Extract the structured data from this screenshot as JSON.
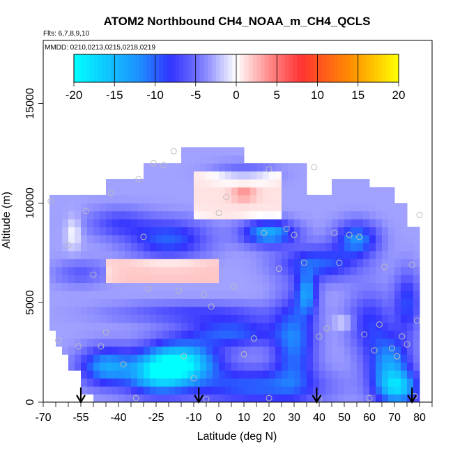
{
  "chart_data": {
    "type": "heatmap",
    "title": "ATOM2 Northbound CH4_NOAA_m_CH4_QCLS",
    "flights_label": "Flts: 6,7,8,9,10",
    "dates_label": "MMDD: 0210,0213,0215,0218,0219",
    "xlabel": "Latitude (deg N)",
    "ylabel": "Altitude (m)",
    "xlim": [
      -70,
      85
    ],
    "ylim": [
      0,
      17500
    ],
    "x_ticks": [
      "-70",
      "-55",
      "-40",
      "-25",
      "-10",
      "0",
      "10",
      "20",
      "30",
      "40",
      "50",
      "60",
      "70",
      "80"
    ],
    "x_tick_values": [
      -70,
      -55,
      -40,
      -25,
      -10,
      0,
      10,
      20,
      30,
      40,
      50,
      60,
      70,
      80
    ],
    "y_ticks": [
      "0",
      "5000",
      "10000",
      "15000"
    ],
    "y_tick_values": [
      0,
      5000,
      10000,
      15000
    ],
    "colorbar": {
      "range": [
        -20,
        20
      ],
      "ticks": [
        "-20",
        "-15",
        "-10",
        "-5",
        "0",
        "5",
        "10",
        "15",
        "20"
      ],
      "tick_values": [
        -20,
        -15,
        -10,
        -5,
        0,
        5,
        10,
        15,
        20
      ]
    },
    "profile_arrows_lat": [
      -55,
      -8,
      39,
      77
    ],
    "grid": false,
    "legend": "top colorbar",
    "colors": {
      "min": "#00ffff",
      "low": "#1e90ff",
      "mid_low": "#3333ff",
      "zero": "#ffffff",
      "mid_high": "#ff3333",
      "high": "#ff8c00",
      "max": "#ffff00",
      "point_marker": "#bbbbbb"
    }
  }
}
